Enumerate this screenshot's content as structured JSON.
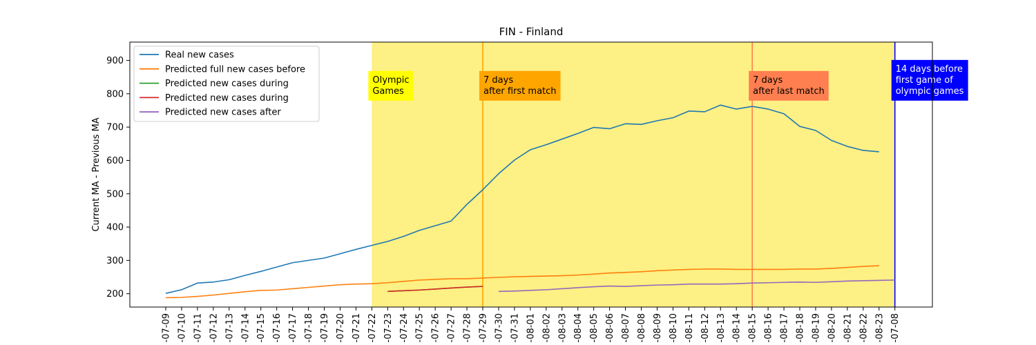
{
  "chart_data": {
    "type": "line",
    "title": "FIN - Finland",
    "xlabel": "",
    "ylabel": "Current MA - Previous MA",
    "ylim": [
      160,
      955
    ],
    "yticks": [
      200,
      300,
      400,
      500,
      600,
      700,
      800,
      900
    ],
    "grid": false,
    "legend_position": "top-left",
    "x_tick_labels": [
      "-07-09",
      "-07-10",
      "-07-11",
      "-07-12",
      "-07-13",
      "-07-14",
      "-07-15",
      "-07-16",
      "-07-17",
      "-07-18",
      "-07-19",
      "-07-20",
      "-07-21",
      "-07-22",
      "-07-23",
      "-07-24",
      "-07-25",
      "-07-26",
      "-07-27",
      "-07-28",
      "-07-29",
      "-07-30",
      "-07-31",
      "-08-01",
      "-08-02",
      "-08-03",
      "-08-04",
      "-08-05",
      "-08-06",
      "-08-07",
      "-08-08",
      "-08-09",
      "-08-10",
      "-08-11",
      "-08-12",
      "-08-13",
      "-08-14",
      "-08-15",
      "-08-16",
      "-08-17",
      "-08-18",
      "-08-19",
      "-08-20",
      "-08-21",
      "-08-22",
      "-08-23",
      "-07-08"
    ],
    "series": [
      {
        "name": "Real new cases",
        "color": "#1f77b4",
        "start_index": 0,
        "values": [
          201,
          212,
          232,
          235,
          242,
          255,
          267,
          280,
          293,
          300,
          307,
          320,
          333,
          345,
          357,
          372,
          390,
          404,
          418,
          468,
          512,
          560,
          601,
          632,
          647,
          664,
          681,
          699,
          695,
          710,
          708,
          719,
          728,
          748,
          746,
          766,
          754,
          762,
          754,
          740,
          702,
          690,
          660,
          642,
          630,
          626
        ]
      },
      {
        "name": "Predicted full new cases before",
        "color": "#ff7f0e",
        "start_index": 0,
        "values": [
          188,
          189,
          192,
          196,
          201,
          206,
          210,
          211,
          215,
          219,
          223,
          227,
          229,
          230,
          233,
          237,
          241,
          243,
          245,
          245,
          247,
          249,
          251,
          252,
          253,
          254,
          256,
          259,
          262,
          264,
          266,
          269,
          271,
          273,
          274,
          274,
          273,
          273,
          273,
          273,
          274,
          274,
          276,
          279,
          282,
          284
        ]
      },
      {
        "name": "Predicted new cases during",
        "color": "#2ca02c",
        "start_index": 14,
        "values": [
          207,
          209,
          211,
          214,
          217,
          220,
          222
        ]
      },
      {
        "name": "Predicted new cases during",
        "color": "#d62728",
        "start_index": 14,
        "values": [
          207,
          209,
          211,
          214,
          217,
          220,
          222
        ]
      },
      {
        "name": "Predicted new cases after",
        "color": "#9467bd",
        "start_index": 21,
        "values": [
          207,
          208,
          210,
          212,
          215,
          218,
          221,
          223,
          222,
          224,
          226,
          227,
          229,
          229,
          229,
          230,
          232,
          233,
          234,
          235,
          234,
          236,
          238,
          239,
          240,
          241
        ]
      }
    ],
    "shaded_region": {
      "from_index": 13,
      "to_index": 46,
      "color": "#fdf084"
    },
    "vertical_lines": [
      {
        "at_index": 20,
        "color": "#ffa500"
      },
      {
        "at_index": 37,
        "color": "#ff7f50"
      },
      {
        "at_index": 46,
        "color": "#0000ff"
      }
    ],
    "annotations": [
      {
        "text": "Olympic\nGames",
        "at_index": 13,
        "y": 800,
        "bg": "#ffff00",
        "fg": "#000000"
      },
      {
        "text": "7 days\nafter first match",
        "at_index": 20,
        "y": 800,
        "bg": "#ffa500",
        "fg": "#000000"
      },
      {
        "text": "7 days\nafter last match",
        "at_index": 37,
        "y": 800,
        "bg": "#ff7f50",
        "fg": "#000000"
      },
      {
        "text": "14 days before\nfirst game of\nolympic games",
        "at_index": 46,
        "y": 800,
        "bg": "#0000ff",
        "fg": "#ffffff"
      }
    ]
  }
}
